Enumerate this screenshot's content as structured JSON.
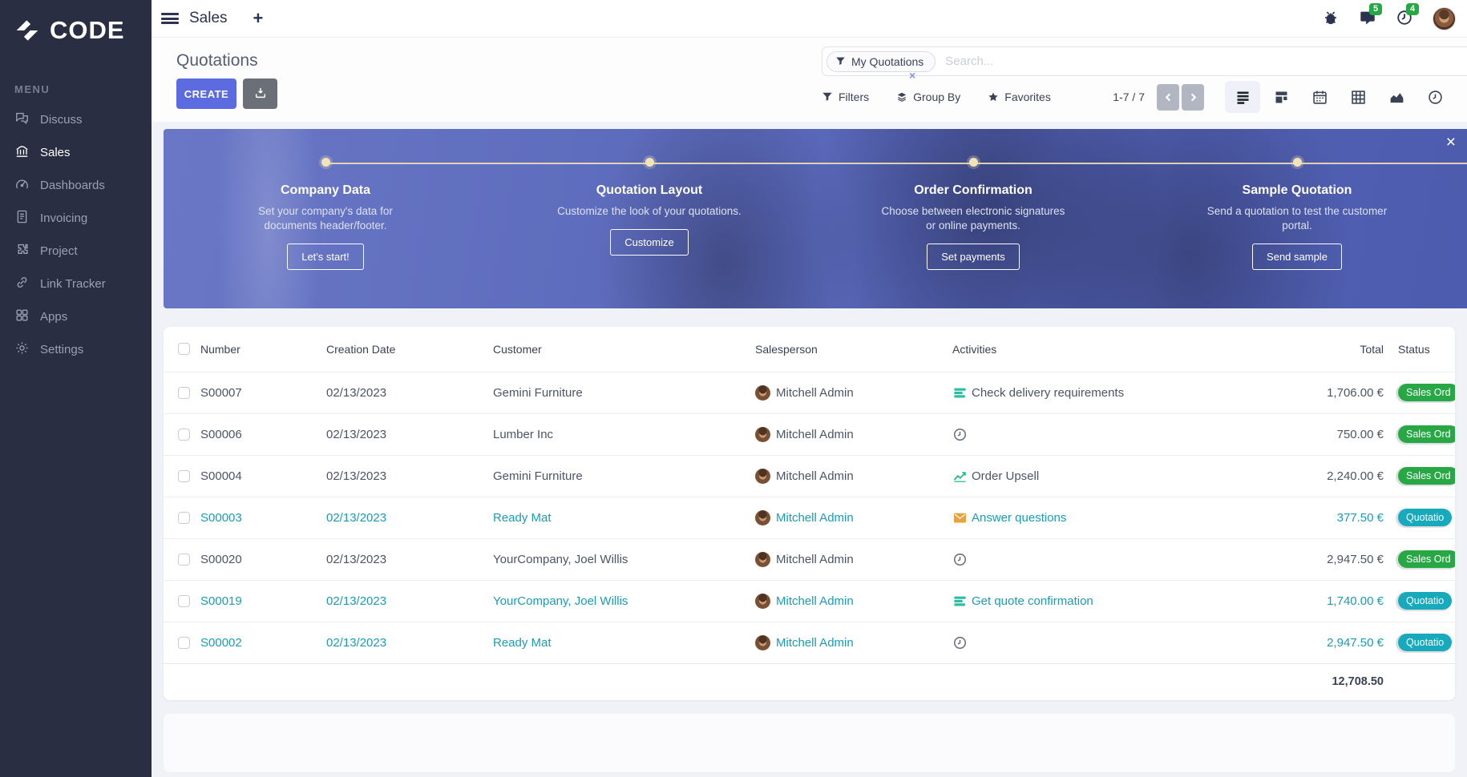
{
  "colors": {
    "accent": "#5c6bdf",
    "sidebar_bg": "#292e42",
    "sales_order_badge": "#28a745",
    "quotation_badge": "#19a9bd",
    "highlight_text": "#1a9cb7",
    "banner_overlay": "#5e6cbd",
    "activity_green": "#2cbe9e",
    "activity_orange": "#e8a33d"
  },
  "sidebar": {
    "logo_text": "CODE",
    "menu_label": "MENU",
    "items": [
      {
        "label": "Discuss",
        "icon": "discuss",
        "active": false
      },
      {
        "label": "Sales",
        "icon": "sales",
        "active": true
      },
      {
        "label": "Dashboards",
        "icon": "dashboards",
        "active": false
      },
      {
        "label": "Invoicing",
        "icon": "invoicing",
        "active": false
      },
      {
        "label": "Project",
        "icon": "project",
        "active": false
      },
      {
        "label": "Link Tracker",
        "icon": "link-tracker",
        "active": false
      },
      {
        "label": "Apps",
        "icon": "apps",
        "active": false
      },
      {
        "label": "Settings",
        "icon": "settings",
        "active": false
      }
    ]
  },
  "topbar": {
    "app_name": "Sales",
    "plus_label": "+",
    "messages_badge": "5",
    "activities_badge": "4"
  },
  "control_panel": {
    "title": "Quotations",
    "create_label": "CREATE",
    "search": {
      "facet_label": "My Quotations",
      "placeholder": "Search...",
      "facet_remove": "×"
    },
    "filters_label": "Filters",
    "group_by_label": "Group By",
    "favorites_label": "Favorites",
    "pager": "1-7 / 7"
  },
  "banner": {
    "close_label": "×",
    "steps": [
      {
        "title": "Company Data",
        "description": "Set your company's data for documents header/footer.",
        "button": "Let's start!"
      },
      {
        "title": "Quotation Layout",
        "description": "Customize the look of your quotations.",
        "button": "Customize"
      },
      {
        "title": "Order Confirmation",
        "description": "Choose between electronic signatures or online payments.",
        "button": "Set payments"
      },
      {
        "title": "Sample Quotation",
        "description": "Send a quotation to test the customer portal.",
        "button": "Send sample"
      }
    ]
  },
  "table": {
    "columns": {
      "number": "Number",
      "creation_date": "Creation Date",
      "customer": "Customer",
      "salesperson": "Salesperson",
      "activities": "Activities",
      "total": "Total",
      "status": "Status"
    },
    "rows": [
      {
        "number": "S00007",
        "creation_date": "02/13/2023",
        "customer": "Gemini Furniture",
        "salesperson": "Mitchell Admin",
        "activity_icon": "tasks",
        "activity": "Check delivery requirements",
        "total": "1,706.00 €",
        "status": "Sales Ord",
        "status_color": "green",
        "highlight": false
      },
      {
        "number": "S00006",
        "creation_date": "02/13/2023",
        "customer": "Lumber Inc",
        "salesperson": "Mitchell Admin",
        "activity_icon": "clock",
        "activity": "",
        "total": "750.00 €",
        "status": "Sales Ord",
        "status_color": "green",
        "highlight": false
      },
      {
        "number": "S00004",
        "creation_date": "02/13/2023",
        "customer": "Gemini Furniture",
        "salesperson": "Mitchell Admin",
        "activity_icon": "chart",
        "activity": "Order Upsell",
        "total": "2,240.00 €",
        "status": "Sales Ord",
        "status_color": "green",
        "highlight": false
      },
      {
        "number": "S00003",
        "creation_date": "02/13/2023",
        "customer": "Ready Mat",
        "salesperson": "Mitchell Admin",
        "activity_icon": "envelope",
        "activity": "Answer questions",
        "total": "377.50 €",
        "status": "Quotatio",
        "status_color": "teal",
        "highlight": true
      },
      {
        "number": "S00020",
        "creation_date": "02/13/2023",
        "customer": "YourCompany, Joel Willis",
        "salesperson": "Mitchell Admin",
        "activity_icon": "clock",
        "activity": "",
        "total": "2,947.50 €",
        "status": "Sales Ord",
        "status_color": "green",
        "highlight": false
      },
      {
        "number": "S00019",
        "creation_date": "02/13/2023",
        "customer": "YourCompany, Joel Willis",
        "salesperson": "Mitchell Admin",
        "activity_icon": "tasks",
        "activity": "Get quote confirmation",
        "total": "1,740.00 €",
        "status": "Quotatio",
        "status_color": "teal",
        "highlight": true
      },
      {
        "number": "S00002",
        "creation_date": "02/13/2023",
        "customer": "Ready Mat",
        "salesperson": "Mitchell Admin",
        "activity_icon": "clock",
        "activity": "",
        "total": "2,947.50 €",
        "status": "Quotatio",
        "status_color": "teal",
        "highlight": true
      }
    ],
    "footer_total": "12,708.50"
  }
}
